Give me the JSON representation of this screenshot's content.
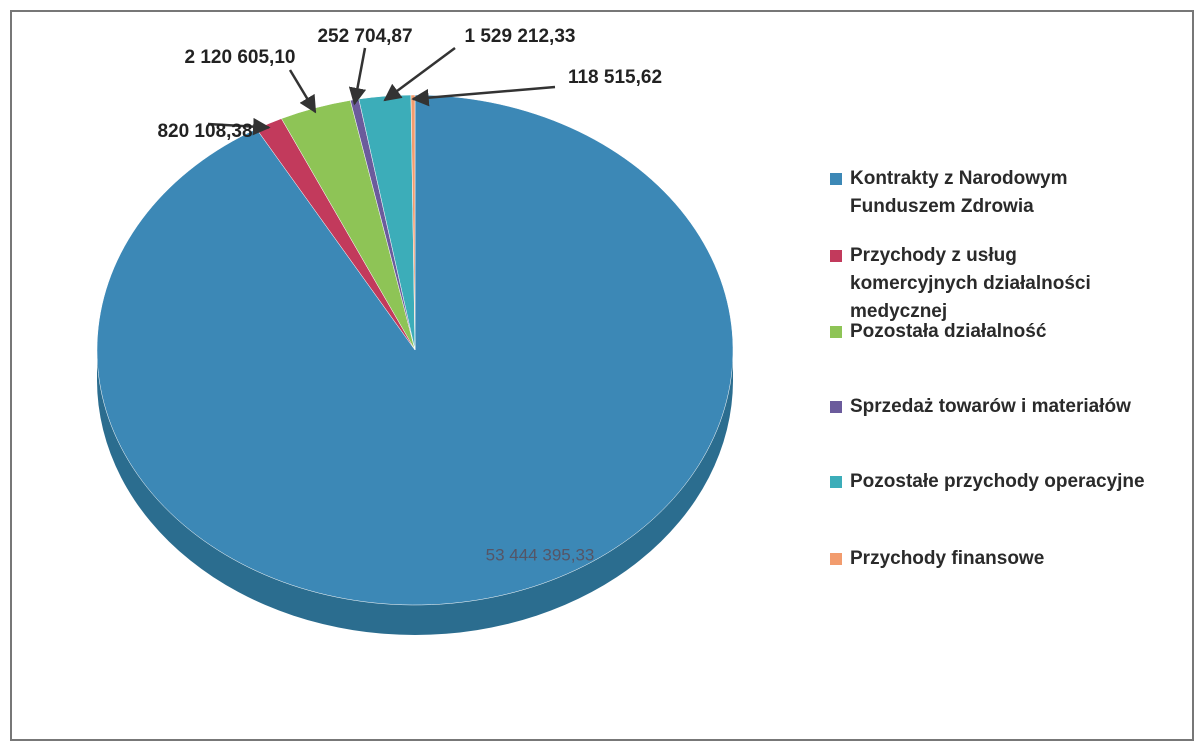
{
  "chart_data": {
    "type": "pie",
    "categories": [
      "Kontrakty z Narodowym Funduszem Zdrowia",
      "Przychody z usług komercyjnych działalności medycznej",
      "Pozostała działalność",
      "Sprzedaż towarów i materiałów",
      "Pozostałe przychody operacyjne",
      "Przychody finansowe"
    ],
    "values": [
      53444395.33,
      820108.38,
      2120605.1,
      252704.87,
      1529212.33,
      118515.62
    ],
    "value_labels": [
      "53 444 395,33",
      "820 108,38",
      "2 120 605,10",
      "252 704,87",
      "1 529 212,33",
      "118 515,62"
    ],
    "colors": [
      "#3c88b6",
      "#c23a5c",
      "#8ec456",
      "#6b5b9c",
      "#3cadb9",
      "#f29c6e"
    ],
    "legend": "right"
  }
}
